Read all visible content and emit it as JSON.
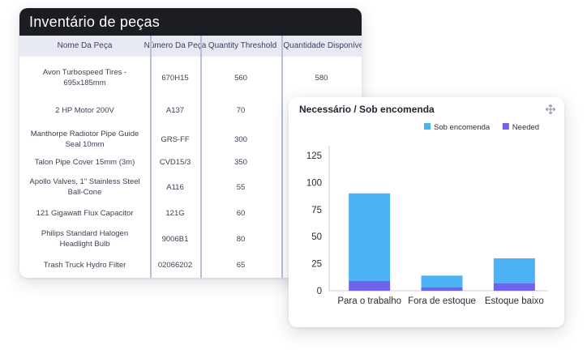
{
  "inventory": {
    "title": "Inventário de peças",
    "columns": [
      "Nome Da Peça",
      "Número Da Peça",
      "Quantity Threshold",
      "Quantidade Disponível"
    ],
    "rows": [
      {
        "name": "Avon Turbospeed Tires - 695x185mm",
        "number": "670H15",
        "threshold": "560",
        "available": "580"
      },
      {
        "name": "2 HP Motor 200V",
        "number": "A137",
        "threshold": "70",
        "available": ""
      },
      {
        "name": "Manthorpe Radiotor Pipe Guide Seal 10mm",
        "number": "GRS-FF",
        "threshold": "300",
        "available": ""
      },
      {
        "name": "Talon Pipe Cover 15mm (3m)",
        "number": "CVD15/3",
        "threshold": "350",
        "available": ""
      },
      {
        "name": "Apollo Valves, 1\" Stainless Steel Ball-Cone",
        "number": "A116",
        "threshold": "55",
        "available": ""
      },
      {
        "name": "121 Gigawatt Flux Capacitor",
        "number": "121G",
        "threshold": "60",
        "available": ""
      },
      {
        "name": "Philips Standard Halogen Headlight Bulb",
        "number": "9006B1",
        "threshold": "80",
        "available": ""
      },
      {
        "name": "Trash Truck Hydro Filter",
        "number": "02066202",
        "threshold": "65",
        "available": ""
      }
    ]
  },
  "chart_card": {
    "title": "Necessário / Sob encomenda",
    "move_icon": "move-arrows-icon"
  },
  "chart_data": {
    "type": "bar",
    "stacked": true,
    "categories": [
      "Para o trabalho",
      "Fora de estoque",
      "Estoque baixo"
    ],
    "series": [
      {
        "name": "Needed",
        "values": [
          9,
          3,
          7
        ],
        "color": "#6f62ee"
      },
      {
        "name": "Sob encomenda",
        "values": [
          81,
          11,
          23
        ],
        "color": "#4db3f5"
      }
    ],
    "legend_order": [
      "Sob encomenda",
      "Needed"
    ],
    "yticks": [
      0,
      25,
      50,
      75,
      100,
      125
    ],
    "ylim": [
      0,
      140
    ],
    "legend_position": "top-right",
    "grid": false
  }
}
